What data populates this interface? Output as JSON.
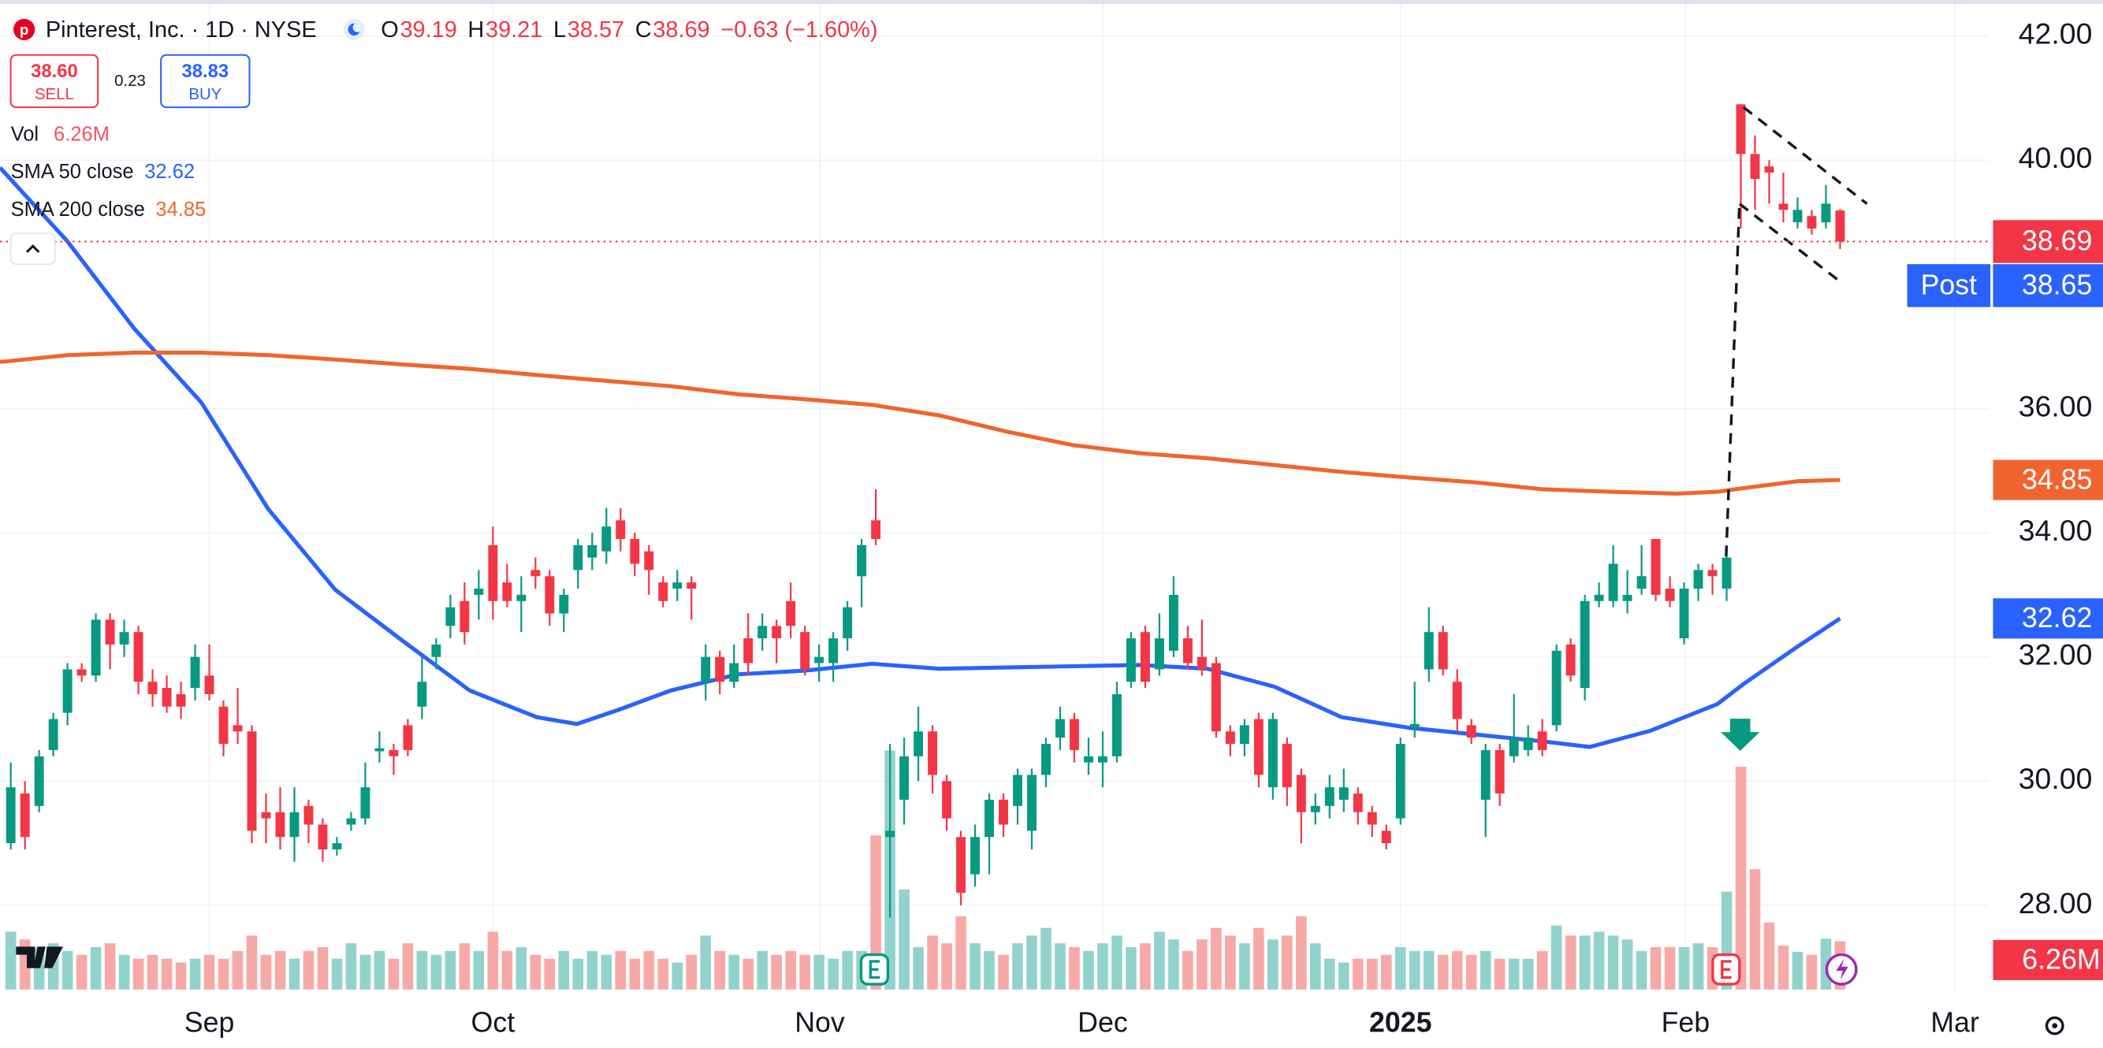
{
  "header": {
    "symbol": "Pinterest, Inc. · 1D · NYSE",
    "o": "O",
    "h": "H",
    "l": "L",
    "c": "C",
    "change": "−0.63 (−1.60%)",
    "sell_price": "38.60",
    "sell": "SELL",
    "spread": "0.23",
    "buy_price": "38.83",
    "buy": "BUY",
    "vol": "Vol",
    "post": "Post",
    "post_price": "38.65"
  },
  "chart_data": {
    "type": "candlestick",
    "grid": true,
    "up_color": "#089981",
    "down_color": "#f23645",
    "xlim": [
      -0.76,
      139.5
    ],
    "ylim": [
      26.6,
      42.58
    ],
    "xticks": [
      {
        "value": 14.0,
        "label": "Sep"
      },
      {
        "value": 34.0,
        "label": "Oct"
      },
      {
        "value": 57.05,
        "label": "Nov"
      },
      {
        "value": 77.0,
        "label": "Dec"
      },
      {
        "value": 98.0,
        "label": "2025"
      },
      {
        "value": 118.1,
        "label": "Feb"
      },
      {
        "value": 137.1,
        "label": "Mar"
      }
    ],
    "yticks": [
      {
        "value": 28,
        "label": "28.00"
      },
      {
        "value": 30,
        "label": "30.00"
      },
      {
        "value": 32,
        "label": "32.00"
      },
      {
        "value": 34,
        "label": "34.00"
      },
      {
        "value": 36,
        "label": "36.00"
      },
      {
        "value": 40,
        "label": "40.00"
      },
      {
        "value": 42,
        "label": "42.00"
      }
    ],
    "open": [
      29.0,
      29.8,
      29.6,
      30.5,
      31.1,
      31.8,
      31.7,
      32.6,
      32.2,
      32.4,
      31.6,
      31.5,
      31.4,
      31.5,
      31.7,
      31.2,
      30.9,
      30.8,
      29.5,
      29.5,
      29.1,
      29.6,
      29.3,
      28.9,
      29.3,
      29.4,
      30.48,
      30.5,
      30.9,
      31.2,
      32.0,
      32.5,
      32.9,
      33.0,
      33.8,
      33.2,
      32.9,
      33.4,
      33.3,
      32.7,
      33.4,
      33.6,
      33.7,
      34.2,
      33.9,
      33.7,
      33.2,
      33.1,
      33.2,
      31.6,
      32.0,
      31.6,
      32.3,
      32.3,
      32.5,
      32.9,
      32.4,
      31.9,
      31.9,
      32.3,
      33.3,
      34.2,
      29.1,
      29.7,
      30.4,
      30.8,
      30.0,
      29.1,
      28.5,
      29.1,
      29.7,
      29.6,
      29.2,
      30.1,
      30.7,
      31.0,
      30.3,
      30.3,
      30.4,
      31.6,
      32.4,
      31.8,
      32.1,
      32.3,
      32.0,
      31.9,
      30.8,
      30.6,
      31.0,
      29.9,
      30.6,
      30.1,
      29.5,
      29.6,
      29.7,
      29.8,
      29.5,
      29.2,
      29.4,
      30.86,
      31.8,
      32.4,
      31.6,
      30.9,
      29.7,
      30.5,
      30.4,
      30.5,
      30.8,
      30.9,
      32.2,
      31.5,
      32.9,
      32.9,
      32.9,
      33.1,
      33.9,
      33.1,
      32.3,
      33.1,
      33.4,
      33.1,
      40.9,
      40.1,
      39.9,
      39.3,
      39.0,
      39.1,
      39.0,
      39.19
    ],
    "high": [
      30.3,
      30.0,
      30.5,
      31.1,
      31.9,
      31.9,
      32.7,
      32.7,
      32.6,
      32.5,
      31.8,
      31.7,
      31.6,
      32.2,
      32.2,
      31.3,
      31.5,
      30.9,
      29.8,
      29.9,
      29.9,
      29.7,
      29.4,
      29.1,
      29.5,
      30.3,
      30.8,
      30.6,
      31.0,
      32.0,
      32.3,
      33.0,
      33.2,
      33.4,
      34.1,
      33.5,
      33.3,
      33.6,
      33.4,
      33.1,
      33.9,
      34.0,
      34.4,
      34.4,
      34.0,
      33.8,
      33.3,
      33.4,
      33.3,
      32.2,
      32.1,
      32.2,
      32.7,
      32.7,
      32.6,
      33.2,
      32.5,
      32.2,
      32.4,
      32.9,
      33.9,
      34.7,
      30.6,
      30.7,
      31.2,
      30.9,
      30.1,
      29.2,
      29.3,
      29.8,
      29.8,
      30.2,
      30.2,
      30.7,
      31.2,
      31.1,
      30.7,
      30.8,
      31.6,
      32.4,
      32.5,
      32.7,
      33.3,
      32.5,
      32.6,
      32.0,
      30.9,
      31.0,
      31.1,
      31.1,
      30.7,
      30.2,
      29.8,
      30.1,
      30.2,
      29.9,
      29.6,
      29.3,
      30.7,
      31.6,
      32.8,
      32.5,
      31.8,
      31.0,
      30.6,
      30.6,
      31.4,
      30.9,
      31.0,
      32.2,
      32.3,
      33.0,
      33.2,
      33.8,
      33.4,
      33.8,
      33.9,
      33.3,
      33.2,
      33.5,
      33.5,
      33.8,
      40.9,
      40.4,
      40.0,
      39.8,
      39.4,
      39.2,
      39.6,
      39.21
    ],
    "low": [
      28.9,
      28.9,
      29.5,
      30.4,
      30.9,
      31.6,
      31.6,
      31.8,
      32.0,
      31.4,
      31.2,
      31.1,
      31.0,
      31.3,
      31.3,
      30.4,
      30.6,
      29.0,
      29.0,
      28.9,
      28.7,
      29.0,
      28.7,
      28.8,
      29.2,
      29.3,
      30.3,
      30.1,
      30.4,
      31.0,
      31.8,
      32.3,
      32.2,
      32.6,
      32.6,
      32.8,
      32.4,
      33.1,
      32.5,
      32.4,
      33.1,
      33.4,
      33.5,
      33.7,
      33.3,
      33.0,
      32.8,
      32.9,
      32.6,
      31.3,
      31.4,
      31.5,
      31.7,
      32.1,
      31.9,
      32.3,
      31.7,
      31.6,
      31.6,
      32.1,
      32.8,
      33.8,
      27.8,
      29.3,
      30.0,
      29.8,
      29.2,
      28.0,
      28.3,
      28.5,
      29.1,
      29.3,
      28.9,
      29.9,
      30.5,
      30.3,
      30.1,
      29.9,
      30.3,
      31.5,
      31.5,
      31.7,
      32.0,
      31.8,
      31.7,
      30.7,
      30.4,
      30.4,
      29.9,
      29.7,
      29.6,
      29.0,
      29.3,
      29.4,
      29.5,
      29.3,
      29.1,
      28.9,
      29.3,
      30.7,
      31.6,
      31.7,
      30.8,
      30.6,
      29.1,
      29.6,
      30.3,
      30.4,
      30.4,
      30.8,
      31.6,
      31.3,
      32.8,
      32.8,
      32.7,
      33.0,
      32.9,
      32.8,
      32.2,
      32.9,
      33.0,
      32.9,
      38.9,
      39.2,
      39.3,
      39.0,
      38.9,
      38.8,
      38.9,
      38.57
    ],
    "close": [
      29.9,
      29.1,
      30.4,
      31.0,
      31.8,
      31.7,
      32.6,
      32.2,
      32.4,
      31.6,
      31.4,
      31.2,
      31.2,
      32.0,
      31.4,
      30.6,
      30.8,
      29.2,
      29.4,
      29.1,
      29.5,
      29.3,
      28.9,
      29.0,
      29.4,
      29.9,
      30.53,
      30.4,
      30.5,
      31.6,
      32.2,
      32.8,
      32.4,
      33.1,
      32.9,
      32.9,
      33.0,
      33.3,
      32.7,
      33.0,
      33.8,
      33.8,
      34.1,
      33.9,
      33.5,
      33.4,
      32.9,
      33.2,
      33.1,
      32.0,
      31.6,
      31.9,
      31.9,
      32.5,
      32.3,
      32.5,
      31.8,
      32.0,
      32.3,
      32.8,
      33.8,
      33.9,
      29.2,
      30.4,
      30.8,
      30.1,
      29.4,
      28.2,
      29.1,
      29.7,
      29.3,
      30.1,
      30.1,
      30.6,
      31.0,
      30.5,
      30.4,
      30.4,
      31.4,
      32.3,
      31.6,
      32.3,
      33.0,
      31.9,
      31.8,
      30.8,
      30.6,
      30.9,
      30.1,
      31.0,
      29.9,
      29.5,
      29.6,
      29.9,
      29.9,
      29.5,
      29.3,
      29.0,
      30.6,
      30.92,
      32.4,
      31.8,
      31.0,
      30.7,
      30.5,
      29.8,
      30.7,
      30.7,
      30.5,
      32.1,
      31.7,
      32.9,
      33.0,
      33.5,
      33.0,
      33.3,
      33.0,
      32.9,
      33.1,
      33.4,
      33.3,
      33.6,
      40.1,
      39.7,
      39.8,
      39.2,
      39.2,
      38.9,
      39.3,
      38.69
    ],
    "volume": {
      "up_color": "#92d2cc",
      "down_color": "#f7a9a7",
      "ylim": [
        0,
        32
      ],
      "last_label": "6.26M",
      "values": [
        7.5,
        6.5,
        5.5,
        6,
        5,
        4.5,
        5.5,
        6,
        4.5,
        4,
        4.5,
        4,
        3.5,
        4,
        4.5,
        4,
        5,
        7,
        4.5,
        5,
        4,
        5,
        5.5,
        4,
        6,
        4.5,
        5,
        4,
        6,
        5,
        4.5,
        5,
        6,
        5,
        7.5,
        5,
        5.5,
        4.5,
        4,
        5,
        4,
        5,
        4.5,
        5,
        4,
        5,
        4,
        3.5,
        4.5,
        7,
        5,
        4.5,
        4,
        5,
        4.5,
        5,
        4.5,
        4.5,
        4,
        5,
        5,
        20,
        31,
        13,
        5.5,
        7,
        6,
        9.5,
        6,
        5,
        4.5,
        6,
        7,
        8,
        6,
        5.5,
        5,
        6,
        7,
        5.5,
        6,
        7.5,
        6.5,
        5,
        6.5,
        8,
        7,
        6,
        8,
        6.5,
        7,
        9.5,
        6,
        4,
        3.5,
        4,
        4,
        4.5,
        5.5,
        5,
        5,
        4.5,
        5,
        4.5,
        5,
        4,
        4,
        4,
        5,
        8.3,
        7,
        7,
        7.5,
        7,
        6.5,
        5,
        5.5,
        5.5,
        5.5,
        6,
        5.5,
        12.7,
        28.9,
        15.6,
        8.7,
        5.7,
        4.9,
        4.5,
        6.6,
        6.26
      ]
    },
    "sma": [
      {
        "name": "SMA 50 close",
        "color": "#2962ff",
        "x": [
          -0.76,
          3.97,
          8.7,
          13.43,
          18.16,
          22.89,
          27.63,
          32.36,
          37.09,
          39.92,
          42.76,
          46.55,
          51.28,
          56.01,
          60.74,
          65.47,
          70.2,
          74.93,
          79.66,
          84.39,
          89.12,
          93.85,
          98.58,
          103.31,
          108.04,
          111.35,
          115.61,
          120.34,
          122.23,
          126.02,
          129
        ],
        "values": [
          39.88,
          38.7,
          37.29,
          36.1,
          34.38,
          33.08,
          32.26,
          31.46,
          31.03,
          30.92,
          31.14,
          31.46,
          31.72,
          31.78,
          31.89,
          31.81,
          31.83,
          31.85,
          31.87,
          31.81,
          31.52,
          31.03,
          30.86,
          30.75,
          30.64,
          30.55,
          30.81,
          31.24,
          31.57,
          32.17,
          32.62
        ]
      },
      {
        "name": "SMA 200 close",
        "color": "#f0652f",
        "x": [
          -0.76,
          3.97,
          8.7,
          13.43,
          18.16,
          22.89,
          27.63,
          32.36,
          37.09,
          41.81,
          46.55,
          51.28,
          56.01,
          60.74,
          65.47,
          70.2,
          74.93,
          79.66,
          84.39,
          89.12,
          93.85,
          98.58,
          103.31,
          108.04,
          112.77,
          117.5,
          120.34,
          122.23,
          126.02,
          129
        ],
        "values": [
          36.75,
          36.86,
          36.9,
          36.9,
          36.86,
          36.79,
          36.71,
          36.64,
          36.54,
          36.45,
          36.36,
          36.23,
          36.15,
          36.06,
          35.89,
          35.63,
          35.41,
          35.28,
          35.2,
          35.09,
          34.98,
          34.89,
          34.81,
          34.7,
          34.66,
          34.63,
          34.66,
          34.72,
          34.83,
          34.85
        ]
      }
    ]
  }
}
